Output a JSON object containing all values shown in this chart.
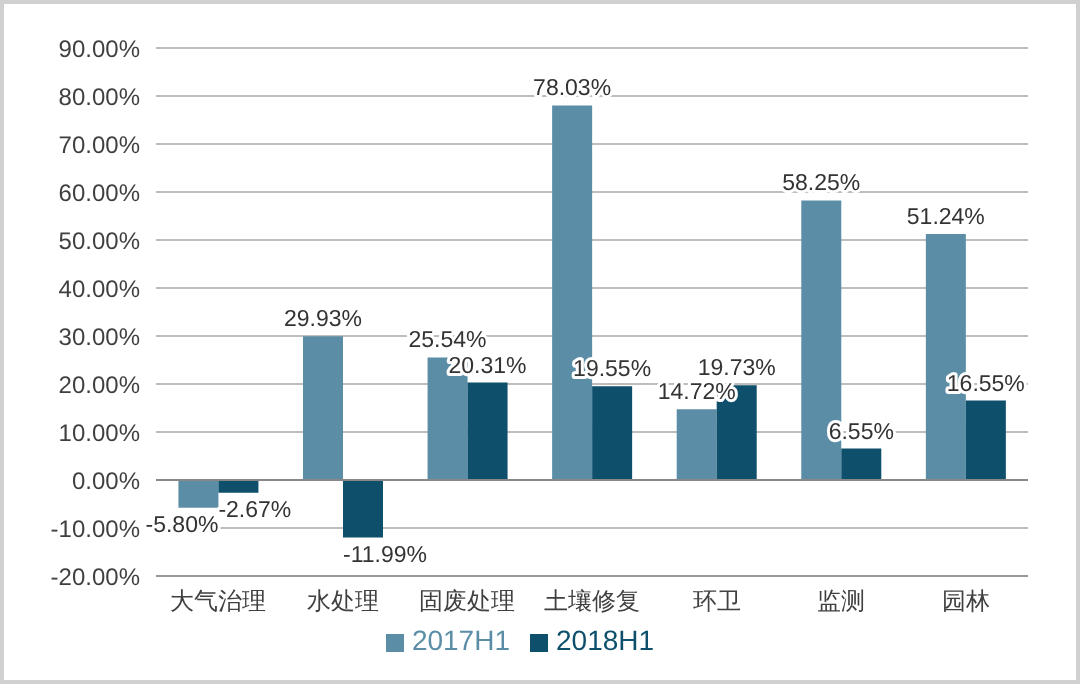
{
  "chart_data": {
    "type": "bar",
    "categories": [
      "大气治理",
      "水处理",
      "固废处理",
      "土壤修复",
      "环卫",
      "监测",
      "园林"
    ],
    "series": [
      {
        "name": "2017H1",
        "color": "#5b8ea6",
        "values": [
          -5.8,
          29.93,
          25.54,
          78.03,
          14.72,
          58.25,
          51.24
        ],
        "value_labels": [
          "-5.80%",
          "29.93%",
          "25.54%",
          "78.03%",
          "14.72%",
          "58.25%",
          "51.24%"
        ]
      },
      {
        "name": "2018H1",
        "color": "#0e4f6b",
        "values": [
          -2.67,
          -11.99,
          20.31,
          19.55,
          19.73,
          6.55,
          16.55
        ],
        "value_labels": [
          "-2.67%",
          "-11.99%",
          "20.31%",
          "19.55%",
          "19.73%",
          "6.55%",
          "16.55%"
        ]
      }
    ],
    "ylim": [
      -20,
      90
    ],
    "yticks": [
      {
        "value": -20,
        "label": "-20.00%"
      },
      {
        "value": -10,
        "label": "-10.00%"
      },
      {
        "value": 0,
        "label": "0.00%"
      },
      {
        "value": 10,
        "label": "10.00%"
      },
      {
        "value": 20,
        "label": "20.00%"
      },
      {
        "value": 30,
        "label": "30.00%"
      },
      {
        "value": 40,
        "label": "40.00%"
      },
      {
        "value": 50,
        "label": "50.00%"
      },
      {
        "value": 60,
        "label": "60.00%"
      },
      {
        "value": 70,
        "label": "70.00%"
      },
      {
        "value": 80,
        "label": "80.00%"
      },
      {
        "value": 90,
        "label": "90.00%"
      }
    ],
    "grid": "y",
    "legend": "bottom"
  }
}
